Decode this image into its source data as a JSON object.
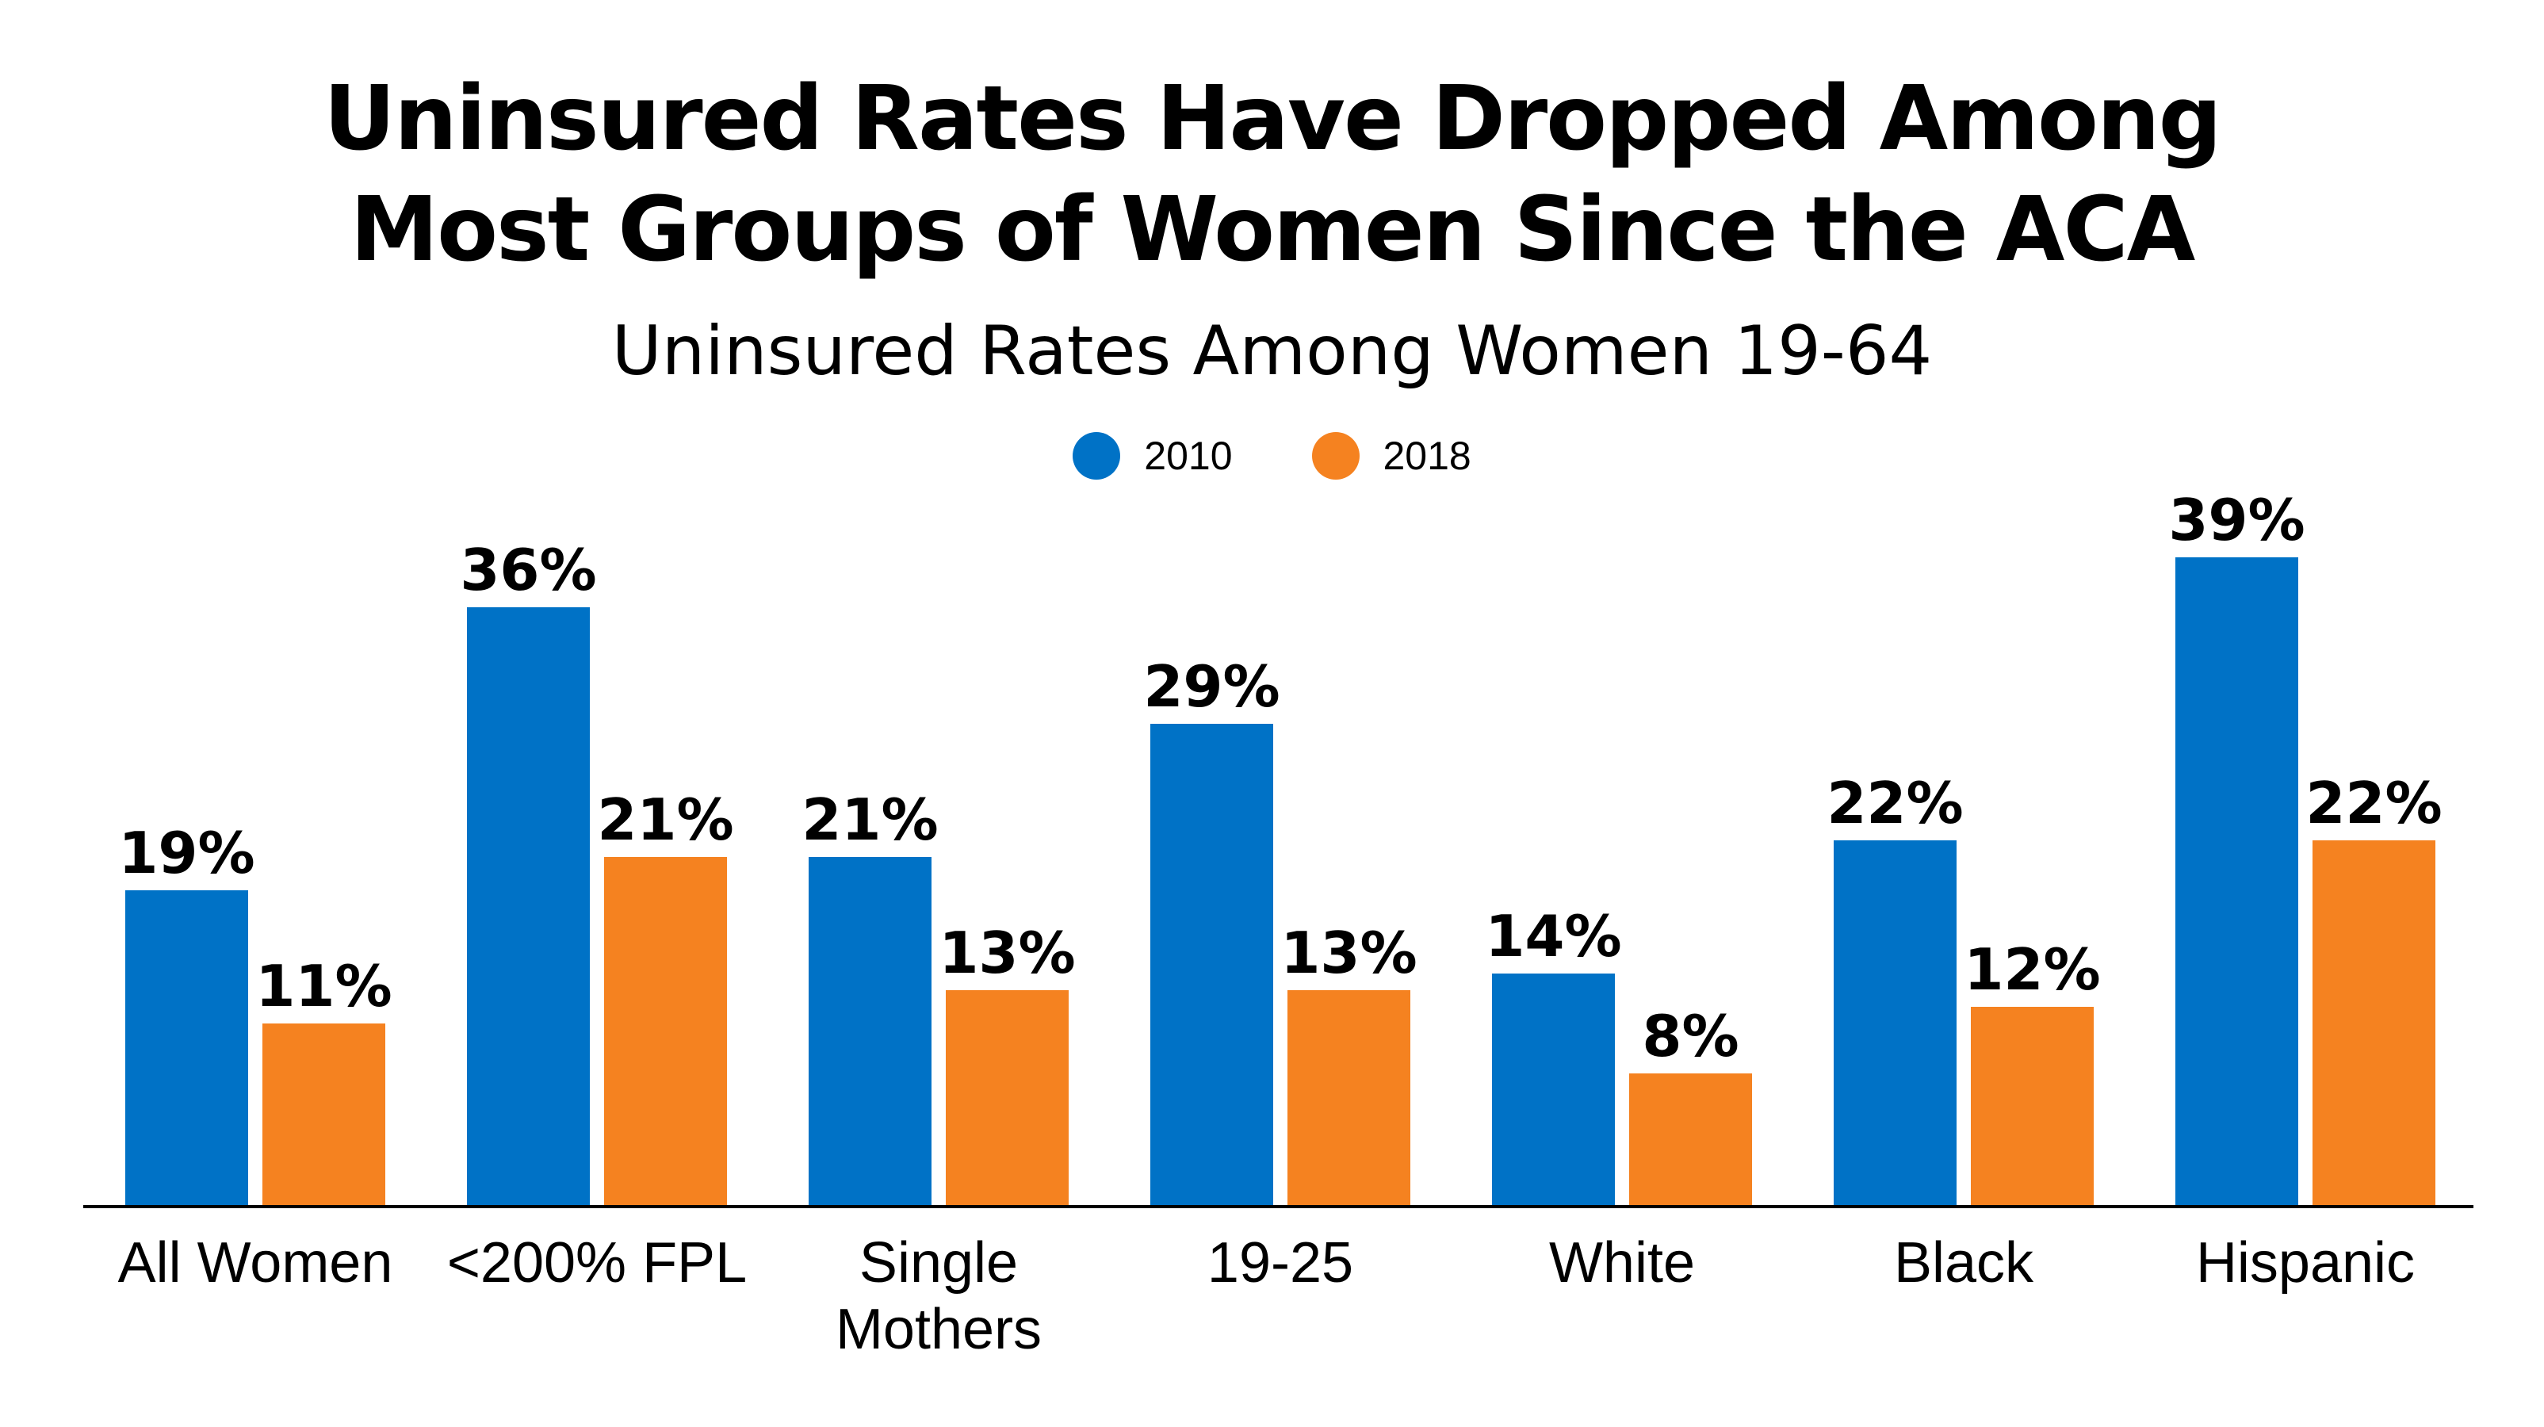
{
  "chart_data": {
    "type": "bar",
    "title": [
      "Uninsured Rates Have Dropped Among",
      "Most Groups of Women Since the ACA"
    ],
    "subtitle": "Uninsured Rates Among Women 19-64",
    "categories": [
      [
        "All Women"
      ],
      [
        "<200% FPL"
      ],
      [
        "Single",
        "Mothers"
      ],
      [
        "19-25"
      ],
      [
        "White"
      ],
      [
        "Black"
      ],
      [
        "Hispanic"
      ]
    ],
    "series": [
      {
        "name": "2010",
        "color": "#0072c6",
        "values": [
          19,
          36,
          21,
          29,
          14,
          22,
          39
        ],
        "labels": [
          "19%",
          "36%",
          "21%",
          "29%",
          "14%",
          "22%",
          "39%"
        ]
      },
      {
        "name": "2018",
        "color": "#f58220",
        "values": [
          11,
          21,
          13,
          13,
          8,
          12,
          22
        ],
        "labels": [
          "11%",
          "21%",
          "13%",
          "13%",
          "8%",
          "12%",
          "22%"
        ]
      }
    ],
    "ylim": [
      0,
      39
    ],
    "grid": false,
    "legend_position": "top-center"
  }
}
